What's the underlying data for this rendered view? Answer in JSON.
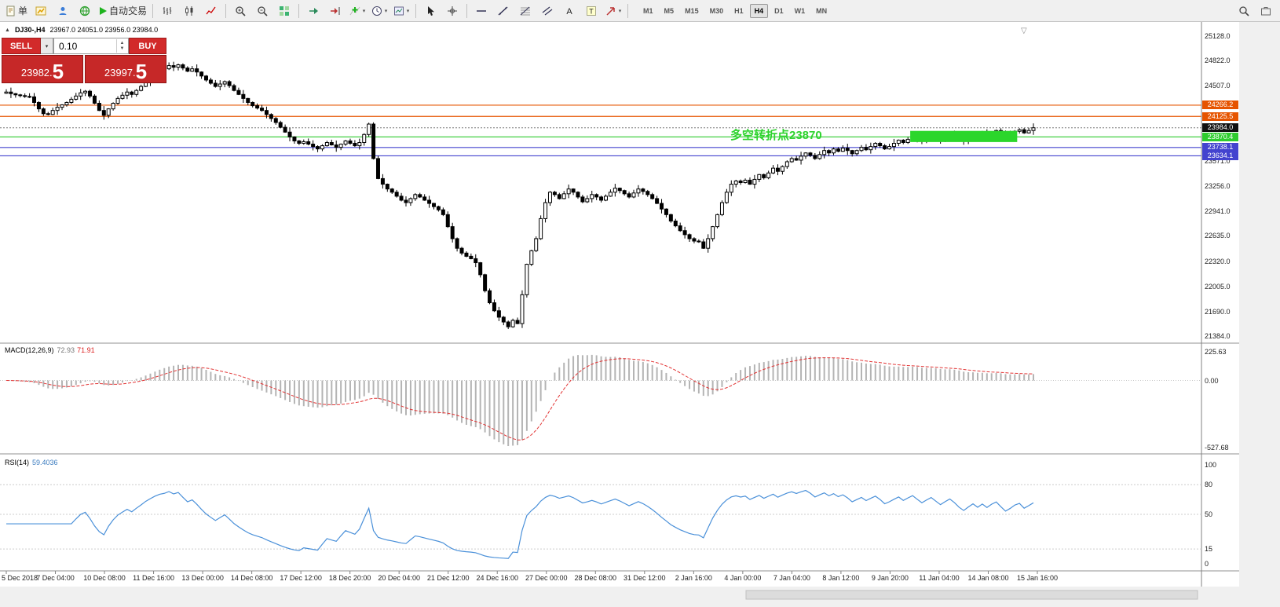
{
  "toolbar": {
    "groups": [
      {
        "items": [
          {
            "name": "new-order-button",
            "glyph": "doc",
            "label": "单"
          },
          {
            "name": "charts-icon",
            "glyph": "chartyellow"
          },
          {
            "name": "profile-icon",
            "glyph": "person"
          },
          {
            "name": "market-icon",
            "glyph": "globe"
          },
          {
            "name": "autotrading-button",
            "glyph": "play",
            "label": "自动交易"
          }
        ]
      },
      {
        "items": [
          {
            "name": "bar-chart-icon",
            "glyph": "bars"
          },
          {
            "name": "candlestick-chart-icon",
            "glyph": "candles"
          },
          {
            "name": "line-chart-icon",
            "glyph": "polyline"
          }
        ]
      },
      {
        "items": [
          {
            "name": "zoom-in-icon",
            "glyph": "zoomin"
          },
          {
            "name": "zoom-out-icon",
            "glyph": "zoomout"
          },
          {
            "name": "tile-windows-icon",
            "glyph": "grid"
          }
        ]
      },
      {
        "items": [
          {
            "name": "auto-scroll-icon",
            "glyph": "autoscroll"
          },
          {
            "name": "chart-shift-icon",
            "glyph": "shift"
          },
          {
            "name": "indicators-icon",
            "glyph": "indplus",
            "caret": true
          },
          {
            "name": "periods-icon",
            "glyph": "clock",
            "caret": true
          },
          {
            "name": "templates-icon",
            "glyph": "template",
            "caret": true
          }
        ]
      },
      {
        "items": [
          {
            "name": "cursor-icon",
            "glyph": "cursor"
          },
          {
            "name": "crosshair-icon",
            "glyph": "crosshair"
          }
        ]
      },
      {
        "items": [
          {
            "name": "horizontal-line-icon",
            "glyph": "hline"
          },
          {
            "name": "trendline-icon",
            "glyph": "tline"
          },
          {
            "name": "fibonacci-icon",
            "glyph": "fibo"
          },
          {
            "name": "channel-icon",
            "glyph": "channel"
          },
          {
            "name": "text-icon",
            "glyph": "letterA"
          },
          {
            "name": "label-icon",
            "glyph": "letterT"
          },
          {
            "name": "shapes-icon",
            "glyph": "arrowne",
            "caret": true
          }
        ]
      }
    ],
    "timeframes": {
      "options": [
        "M1",
        "M5",
        "M15",
        "M30",
        "H1",
        "H4",
        "D1",
        "W1",
        "MN"
      ],
      "active": "H4"
    },
    "right": [
      {
        "name": "search-icon",
        "glyph": "magnifier"
      },
      {
        "name": "toolbox-icon",
        "glyph": "toolbox"
      }
    ]
  },
  "chart": {
    "title": {
      "symbol_period": "DJ30-,H4",
      "ohlc": "23967.0 24051.0 23956.0 23984.0"
    },
    "trade_panel": {
      "sell_label": "SELL",
      "buy_label": "BUY",
      "volume": "0.10",
      "sell_price_small": "23982.",
      "sell_price_big": "5",
      "buy_price_small": "23997.",
      "buy_price_big": "5"
    },
    "annotation": {
      "text": "多空转折点23870",
      "color": "#2ed32e"
    },
    "current_price": {
      "price": 23984.0,
      "label": "23984.0",
      "color": "#111111"
    },
    "levels": [
      {
        "price": 24266.2,
        "label": "24266.2",
        "color": "#e65400"
      },
      {
        "price": 24125.5,
        "label": "24125.5",
        "color": "#e65400"
      },
      {
        "price": 23870.4,
        "label": "23870.4",
        "color": "#2ecc2e"
      },
      {
        "price": 23738.1,
        "label": "23738.1",
        "color": "#4343cf"
      },
      {
        "price": 23634.1,
        "label": "23634.1",
        "color": "#4343cf"
      }
    ],
    "axis_labels": [
      {
        "label": "25128.0",
        "price": 25128.0
      },
      {
        "label": "24822.0",
        "price": 24822.0
      },
      {
        "label": "24507.0",
        "price": 24507.0
      },
      {
        "label": "23571.0",
        "price": 23571.0
      },
      {
        "label": "23256.0",
        "price": 23256.0
      },
      {
        "label": "22941.0",
        "price": 22941.0
      },
      {
        "label": "22635.0",
        "price": 22635.0
      },
      {
        "label": "22320.0",
        "price": 22320.0
      },
      {
        "label": "22005.0",
        "price": 22005.0
      },
      {
        "label": "21690.0",
        "price": 21690.0
      },
      {
        "label": "21384.0",
        "price": 21384.0
      }
    ],
    "highlight_box": {
      "i0": 195,
      "i1": 217,
      "price_top": 23945,
      "price_bottom": 23806
    }
  },
  "chart_data": {
    "type": "candlestick",
    "title": "DJ30-,H4",
    "ohlc_display": "23967.0 24051.0 23956.0 23984.0",
    "ylim": [
      21384,
      25128
    ],
    "x_labels": [
      "5 Dec 2018",
      "7 Dec 04:00",
      "10 Dec 08:00",
      "11 Dec 16:00",
      "13 Dec 00:00",
      "14 Dec 08:00",
      "17 Dec 12:00",
      "18 Dec 20:00",
      "20 Dec 04:00",
      "21 Dec 12:00",
      "24 Dec 16:00",
      "27 Dec 00:00",
      "28 Dec 08:00",
      "31 Dec 12:00",
      "2 Jan 16:00",
      "4 Jan 00:00",
      "7 Jan 04:00",
      "8 Jan 12:00",
      "9 Jan 20:00",
      "11 Jan 04:00",
      "14 Jan 08:00",
      "15 Jan 16:00"
    ],
    "closes": [
      24430,
      24410,
      24395,
      24385,
      24375,
      24370,
      24300,
      24220,
      24160,
      24150,
      24200,
      24240,
      24270,
      24300,
      24340,
      24380,
      24420,
      24440,
      24380,
      24290,
      24200,
      24140,
      24220,
      24290,
      24350,
      24390,
      24430,
      24400,
      24450,
      24500,
      24560,
      24610,
      24660,
      24700,
      24720,
      24760,
      24740,
      24770,
      24730,
      24690,
      24720,
      24680,
      24630,
      24580,
      24540,
      24500,
      24530,
      24560,
      24510,
      24450,
      24400,
      24350,
      24300,
      24260,
      24230,
      24200,
      24150,
      24100,
      24050,
      23990,
      23930,
      23870,
      23820,
      23790,
      23810,
      23780,
      23750,
      23720,
      23760,
      23800,
      23770,
      23740,
      23780,
      23820,
      23790,
      23760,
      23800,
      23900,
      24030,
      23600,
      23350,
      23280,
      23220,
      23180,
      23130,
      23080,
      23050,
      23100,
      23150,
      23120,
      23080,
      23040,
      23000,
      22960,
      22900,
      22750,
      22600,
      22480,
      22420,
      22380,
      22350,
      22300,
      22150,
      21950,
      21800,
      21700,
      21620,
      21560,
      21500,
      21580,
      21540,
      21900,
      22280,
      22450,
      22600,
      22850,
      23050,
      23180,
      23150,
      23100,
      23160,
      23220,
      23180,
      23120,
      23060,
      23100,
      23150,
      23120,
      23080,
      23130,
      23180,
      23230,
      23200,
      23160,
      23120,
      23170,
      23220,
      23190,
      23150,
      23100,
      23040,
      22970,
      22900,
      22820,
      22760,
      22700,
      22650,
      22600,
      22570,
      22560,
      22480,
      22600,
      22750,
      22900,
      23050,
      23180,
      23280,
      23320,
      23300,
      23330,
      23280,
      23340,
      23400,
      23360,
      23420,
      23480,
      23440,
      23500,
      23560,
      23600,
      23580,
      23630,
      23670,
      23640,
      23600,
      23650,
      23700,
      23670,
      23720,
      23690,
      23730,
      23700,
      23660,
      23700,
      23740,
      23710,
      23750,
      23790,
      23760,
      23720,
      23750,
      23790,
      23830,
      23800,
      23840,
      23880,
      23850,
      23820,
      23860,
      23900,
      23870,
      23840,
      23880,
      23920,
      23890,
      23850,
      23820,
      23860,
      23900,
      23870,
      23910,
      23880,
      23920,
      23950,
      23910,
      23870,
      23900,
      23940,
      23960,
      23920,
      23950,
      23984
    ],
    "wick_pattern": [
      35,
      12,
      48,
      22,
      8,
      40,
      18,
      55,
      28,
      15
    ],
    "indicators": [
      {
        "name": "MACD",
        "label": "MACD(12,26,9)",
        "value_main": "72.93",
        "value_signal": "71.91",
        "params": [
          12,
          26,
          9
        ],
        "axis": [
          {
            "label": "225.63",
            "value": 225.63
          },
          {
            "label": "0.00",
            "value": 0
          },
          {
            "label": "-527.68",
            "value": -527.68
          }
        ]
      },
      {
        "name": "RSI",
        "label": "RSI(14)",
        "value": "59.4036",
        "params": [
          14
        ],
        "axis": [
          {
            "label": "100",
            "value": 100
          },
          {
            "label": "80",
            "value": 80
          },
          {
            "label": "50",
            "value": 50
          },
          {
            "label": "15",
            "value": 15
          },
          {
            "label": "0",
            "value": 0
          }
        ],
        "levels": [
          80,
          50,
          15
        ]
      }
    ]
  },
  "colors": {
    "toolbar_bg": "#f0f0f0",
    "button_red": "#d22a2a",
    "panel_red": "#c62828",
    "level_orange": "#e65400",
    "level_green": "#2ecc2e",
    "level_blue": "#4343cf",
    "current_badge": "#111111",
    "macd_histogram": "#b4b4b4",
    "macd_signal": "#e23333",
    "rsi_line": "#4a90d9",
    "highlight_green": "#2bd62b",
    "annotation_green": "#2ed32e",
    "axis_text": "#222222"
  }
}
